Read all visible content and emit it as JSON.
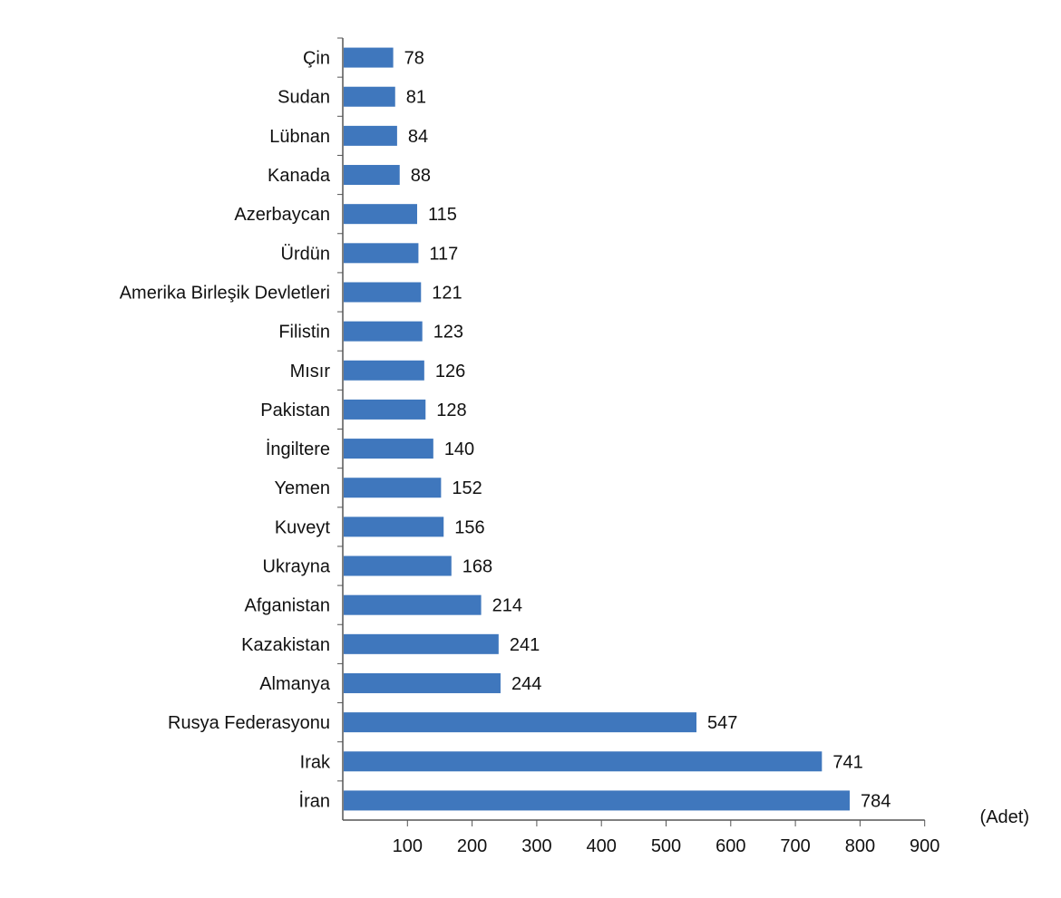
{
  "chart_data": {
    "type": "bar",
    "orientation": "horizontal",
    "categories": [
      "Çin",
      "Sudan",
      "Lübnan",
      "Kanada",
      "Azerbaycan",
      "Ürdün",
      "Amerika Birleşik Devletleri",
      "Filistin",
      "Mısır",
      "Pakistan",
      "İngiltere",
      "Yemen",
      "Kuveyt",
      "Ukrayna",
      "Afganistan",
      "Kazakistan",
      "Almanya",
      "Rusya Federasyonu",
      "Irak",
      "İran"
    ],
    "values": [
      78,
      81,
      84,
      88,
      115,
      117,
      121,
      123,
      126,
      128,
      140,
      152,
      156,
      168,
      214,
      241,
      244,
      547,
      741,
      784
    ],
    "data_labels": [
      "78",
      "81",
      "84",
      "88",
      "115",
      "117",
      "121",
      "123",
      "126",
      "128",
      "140",
      "152",
      "156",
      "168",
      "214",
      "241",
      "244",
      "547",
      "741",
      "784"
    ],
    "xlim": [
      0,
      900
    ],
    "x_ticks": [
      100,
      200,
      300,
      400,
      500,
      600,
      700,
      800,
      900
    ],
    "x_tick_labels": [
      "100",
      "200",
      "300",
      "400",
      "500",
      "600",
      "700",
      "800",
      "900"
    ],
    "unit_label": "(Adet)",
    "bar_color": "#3F77BD",
    "grid": false,
    "legend": "none"
  }
}
